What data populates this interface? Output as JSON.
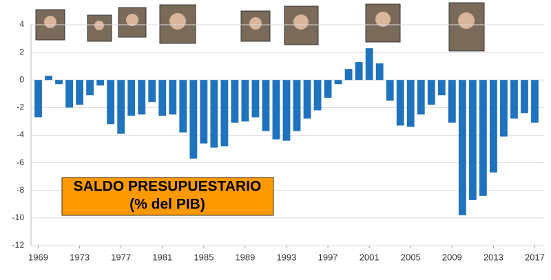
{
  "chart_data": {
    "type": "bar",
    "title": "SALDO PRESUPUESTARIO",
    "subtitle": "(% del PIB)",
    "x": [
      1969,
      1970,
      1971,
      1972,
      1973,
      1974,
      1975,
      1976,
      1977,
      1978,
      1979,
      1980,
      1981,
      1982,
      1983,
      1984,
      1985,
      1986,
      1987,
      1988,
      1989,
      1990,
      1991,
      1992,
      1993,
      1994,
      1995,
      1996,
      1997,
      1998,
      1999,
      2000,
      2001,
      2002,
      2003,
      2004,
      2005,
      2006,
      2007,
      2008,
      2009,
      2010,
      2011,
      2012,
      2013,
      2014,
      2015,
      2016,
      2017
    ],
    "values": [
      -2.7,
      0.3,
      -0.3,
      -2.0,
      -1.8,
      -1.1,
      -0.4,
      -3.2,
      -3.9,
      -2.6,
      -2.5,
      -1.6,
      -2.6,
      -2.5,
      -3.8,
      -5.7,
      -4.6,
      -4.9,
      -4.8,
      -3.1,
      -3.0,
      -2.7,
      -3.7,
      -4.3,
      -4.4,
      -3.7,
      -2.8,
      -2.2,
      -1.3,
      -0.3,
      0.8,
      1.3,
      2.3,
      1.2,
      -1.5,
      -3.3,
      -3.4,
      -2.5,
      -1.8,
      -1.1,
      -3.1,
      -9.8,
      -8.7,
      -8.4,
      -6.7,
      -4.1,
      -2.8,
      -2.4,
      -3.1
    ],
    "color": "#1f72bd",
    "xlim": [
      1968.3,
      2017.9
    ],
    "xticks": [
      1969,
      1973,
      1977,
      1981,
      1985,
      1989,
      1993,
      1997,
      2001,
      2005,
      2009,
      2013,
      2017
    ],
    "ylim": [
      -12,
      4
    ],
    "yticks": [
      -12,
      -10,
      -8,
      -6,
      -4,
      -2,
      0,
      2,
      4
    ],
    "grid": true
  }
}
